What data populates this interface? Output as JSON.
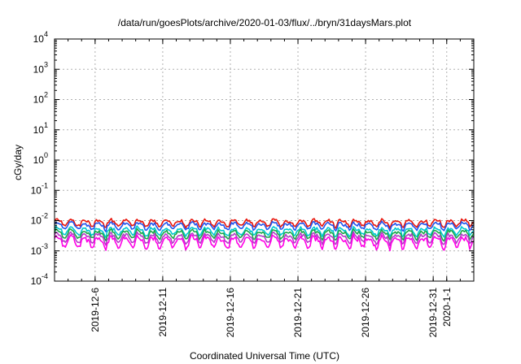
{
  "chart_data": {
    "type": "line",
    "title": "/data/run/goesPlots/archive/2020-01-03/flux/../bryn/31daysMars.plot",
    "xlabel": "Coordinated Universal Time (UTC)",
    "ylabel": "cGy/day",
    "yscale": "log",
    "ylim": [
      0.0001,
      10000
    ],
    "y_tick_labels": [
      {
        "value": 0.0001,
        "base": "10",
        "exp": "-4"
      },
      {
        "value": 0.001,
        "base": "10",
        "exp": "-3"
      },
      {
        "value": 0.01,
        "base": "10",
        "exp": "-2"
      },
      {
        "value": 0.1,
        "base": "10",
        "exp": "-1"
      },
      {
        "value": 1,
        "base": "10",
        "exp": "0"
      },
      {
        "value": 10,
        "base": "10",
        "exp": "1"
      },
      {
        "value": 100,
        "base": "10",
        "exp": "2"
      },
      {
        "value": 1000,
        "base": "10",
        "exp": "3"
      },
      {
        "value": 10000,
        "base": "10",
        "exp": "4"
      }
    ],
    "xlim": [
      "2019-12-03",
      "2020-01-03"
    ],
    "x_ticks": [
      {
        "date": "2019-12-06",
        "label": "2019-12-6"
      },
      {
        "date": "2019-12-11",
        "label": "2019-12-11"
      },
      {
        "date": "2019-12-16",
        "label": "2019-12-16"
      },
      {
        "date": "2019-12-21",
        "label": "2019-12-21"
      },
      {
        "date": "2019-12-26",
        "label": "2019-12-26"
      },
      {
        "date": "2019-12-31",
        "label": "2019-12-31"
      },
      {
        "date": "2020-01-01",
        "label": "2020-1-1"
      }
    ],
    "grid": true,
    "series": [
      {
        "color": "#e8150c",
        "base": 0.0085,
        "amp": 0.18,
        "seed": 1
      },
      {
        "color": "#2255ee",
        "base": 0.0068,
        "amp": 0.18,
        "seed": 2
      },
      {
        "color": "#00c8d0",
        "base": 0.0045,
        "amp": 0.2,
        "seed": 3
      },
      {
        "color": "#1aa84a",
        "base": 0.0036,
        "amp": 0.22,
        "seed": 4
      },
      {
        "color": "#b43cc8",
        "base": 0.0027,
        "amp": 0.25,
        "seed": 5
      },
      {
        "color": "#ff00e6",
        "base": 0.002,
        "amp": 0.3,
        "seed": 6
      }
    ]
  }
}
